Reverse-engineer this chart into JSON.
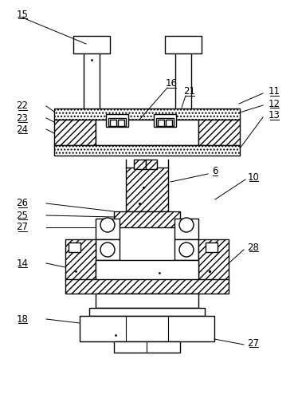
{
  "bg_color": "#ffffff",
  "line_color": "#000000",
  "fs": 8.5
}
